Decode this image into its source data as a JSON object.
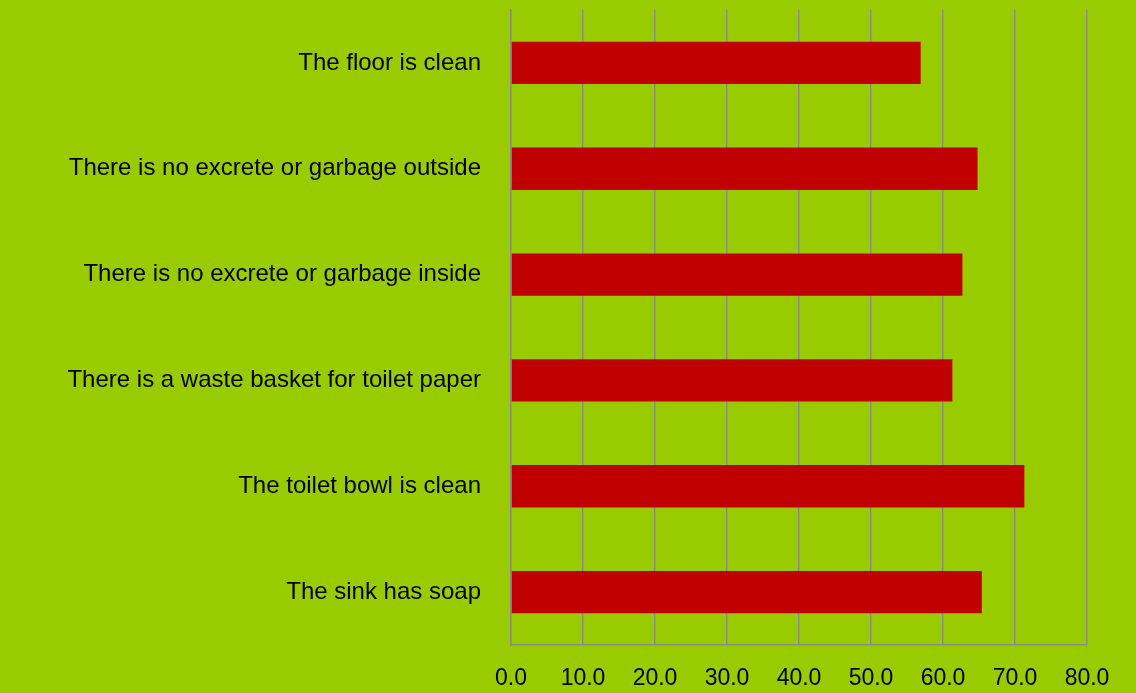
{
  "chart_data": {
    "type": "bar",
    "orientation": "horizontal",
    "categories": [
      "The floor is clean",
      "There is no excrete or garbage outside",
      "There is no excrete or garbage inside",
      "There is a waste basket for toilet paper",
      "The toilet bowl is clean",
      "The sink has soap"
    ],
    "values": [
      56.9,
      64.8,
      62.7,
      61.3,
      71.3,
      65.4
    ],
    "color": "#c00000",
    "xlim": [
      0,
      80
    ],
    "xticks": [
      {
        "value": 0,
        "label": "0.0"
      },
      {
        "value": 10,
        "label": "10.0"
      },
      {
        "value": 20,
        "label": "20.0"
      },
      {
        "value": 30,
        "label": "30.0"
      },
      {
        "value": 40,
        "label": "40.0"
      },
      {
        "value": 50,
        "label": "50.0"
      },
      {
        "value": 60,
        "label": "60.0"
      },
      {
        "value": 70,
        "label": "70.0"
      },
      {
        "value": 80,
        "label": "80.0"
      }
    ],
    "grid": "x"
  }
}
